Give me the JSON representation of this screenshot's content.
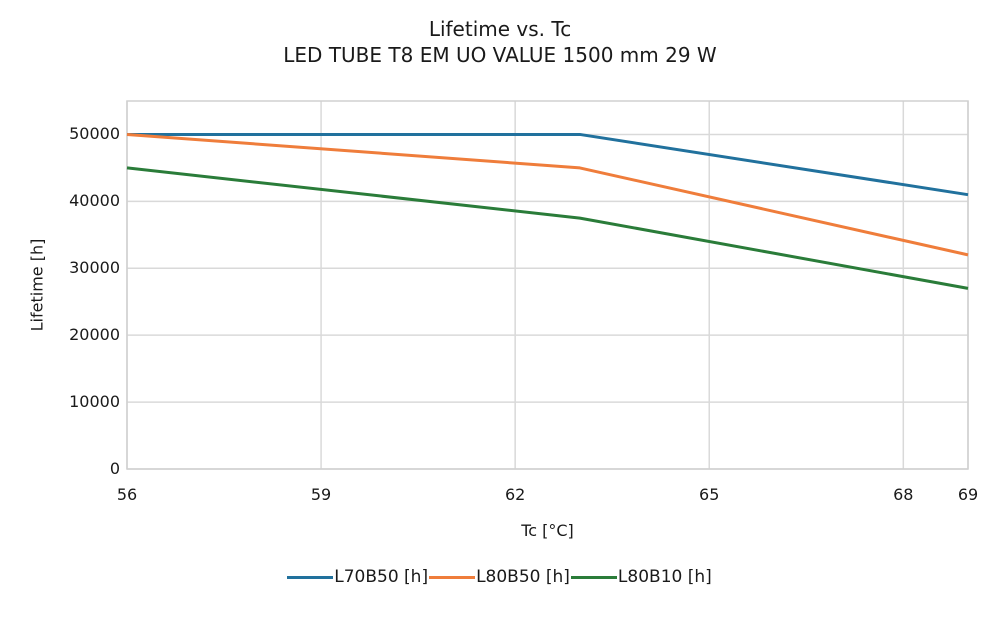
{
  "chart_data": {
    "type": "line",
    "title": "Lifetime vs. Tc",
    "subtitle": "LED TUBE T8 EM UO VALUE 1500 mm 29 W",
    "xlabel": "Tc [°C]",
    "ylabel": "Lifetime [h]",
    "x": [
      56,
      63,
      69
    ],
    "series": [
      {
        "name": "L70B50 [h]",
        "color": "#21719d",
        "values": [
          50000,
          50000,
          41000
        ]
      },
      {
        "name": "L80B50 [h]",
        "color": "#ef7d3b",
        "values": [
          50000,
          45000,
          32000
        ]
      },
      {
        "name": "L80B10 [h]",
        "color": "#2a7c39",
        "values": [
          45000,
          37500,
          27000
        ]
      }
    ],
    "xlim": [
      56,
      69
    ],
    "ylim": [
      0,
      55000
    ],
    "x_ticks": [
      56,
      59,
      62,
      65,
      68,
      69
    ],
    "y_ticks": [
      0,
      10000,
      20000,
      30000,
      40000,
      50000
    ],
    "grid": true,
    "grid_color": "#d9d9d9",
    "axis_color": "#d0d0d0",
    "text_color": "#1a1a1a",
    "line_width": 3,
    "legend_position": "bottom"
  }
}
